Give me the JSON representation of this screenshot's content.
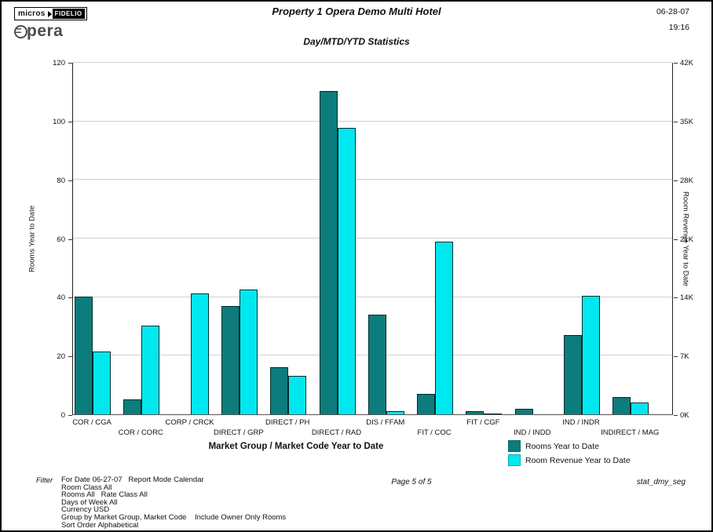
{
  "header": {
    "logo_micros": "micros",
    "logo_fidelio": "FIDELIO",
    "logo_opera": "pera",
    "title": "Property 1 Opera Demo Multi Hotel",
    "date": "06-28-07",
    "time": "19:16",
    "subtitle": "Day/MTD/YTD Statistics"
  },
  "chart_data": {
    "type": "bar",
    "title": "Day/MTD/YTD Statistics",
    "xlabel": "Market Group / Market Code Year to Date",
    "categories": [
      "COR / CGA",
      "COR / CORC",
      "CORP / CRCK",
      "DIRECT / GRP",
      "DIRECT / PH",
      "DIRECT / RAD",
      "DIS / FFAM",
      "FIT / COC",
      "FIT / CGF",
      "IND / INDD",
      "IND / INDR",
      "INDIRECT / MAG"
    ],
    "series": [
      {
        "name": "Rooms Year to Date",
        "axis": "left",
        "color": "#0d7c7c",
        "values": [
          40,
          5,
          0,
          37,
          16,
          110,
          34,
          7,
          1,
          2,
          27,
          6
        ]
      },
      {
        "name": "Room Revenue Year to Date",
        "axis": "right",
        "color": "#00e8ef",
        "values": [
          7.5,
          10.6,
          14.4,
          14.9,
          4.6,
          34.1,
          0.4,
          20.6,
          0.1,
          0,
          14.1,
          1.4
        ]
      }
    ],
    "left_axis": {
      "label": "Rooms Year to Date",
      "ticks": [
        0,
        20,
        40,
        60,
        80,
        100,
        120
      ],
      "max": 120
    },
    "right_axis": {
      "label": "Room Revenue Year to Date",
      "ticks": [
        "0K",
        "7K",
        "14K",
        "21K",
        "28K",
        "35K",
        "42K"
      ],
      "tick_values": [
        0,
        7,
        14,
        21,
        28,
        35,
        42
      ],
      "max": 42
    },
    "legend_position": "bottom-right",
    "grid": true
  },
  "footer": {
    "filter_label": "Filter",
    "filter_lines": [
      "For Date 06-27-07   Report Mode Calendar",
      "Room Class All",
      "Rooms All   Rate Class All",
      "Days of Week All",
      "Currency USD",
      "Group by Market Group, Market Code    Include Owner Only Rooms",
      "Sort Order Alphabetical"
    ],
    "page": "Page 5 of 5",
    "report_id": "stat_dmy_seg"
  }
}
